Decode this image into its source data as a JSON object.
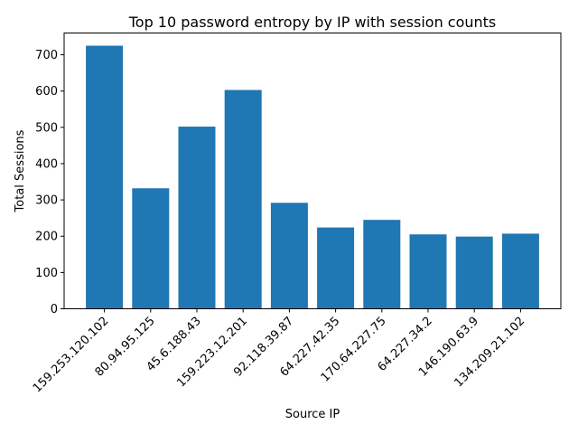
{
  "chart_data": {
    "type": "bar",
    "title": "Top 10 password entropy by IP with session counts",
    "xlabel": "Source IP",
    "ylabel": "Total Sessions",
    "categories": [
      "159.253.120.102",
      "80.94.95.125",
      "45.6.188.43",
      "159.223.12.201",
      "92.118.39.87",
      "64.227.42.35",
      "170.64.227.75",
      "64.227.34.2",
      "146.190.63.9",
      "134.209.21.102"
    ],
    "values": [
      725,
      332,
      502,
      603,
      292,
      224,
      245,
      205,
      199,
      207
    ],
    "ylim": [
      0,
      760
    ],
    "yticks": [
      0,
      100,
      200,
      300,
      400,
      500,
      600,
      700
    ],
    "bar_color": "#1f77b4",
    "grid": false,
    "legend": "none"
  }
}
